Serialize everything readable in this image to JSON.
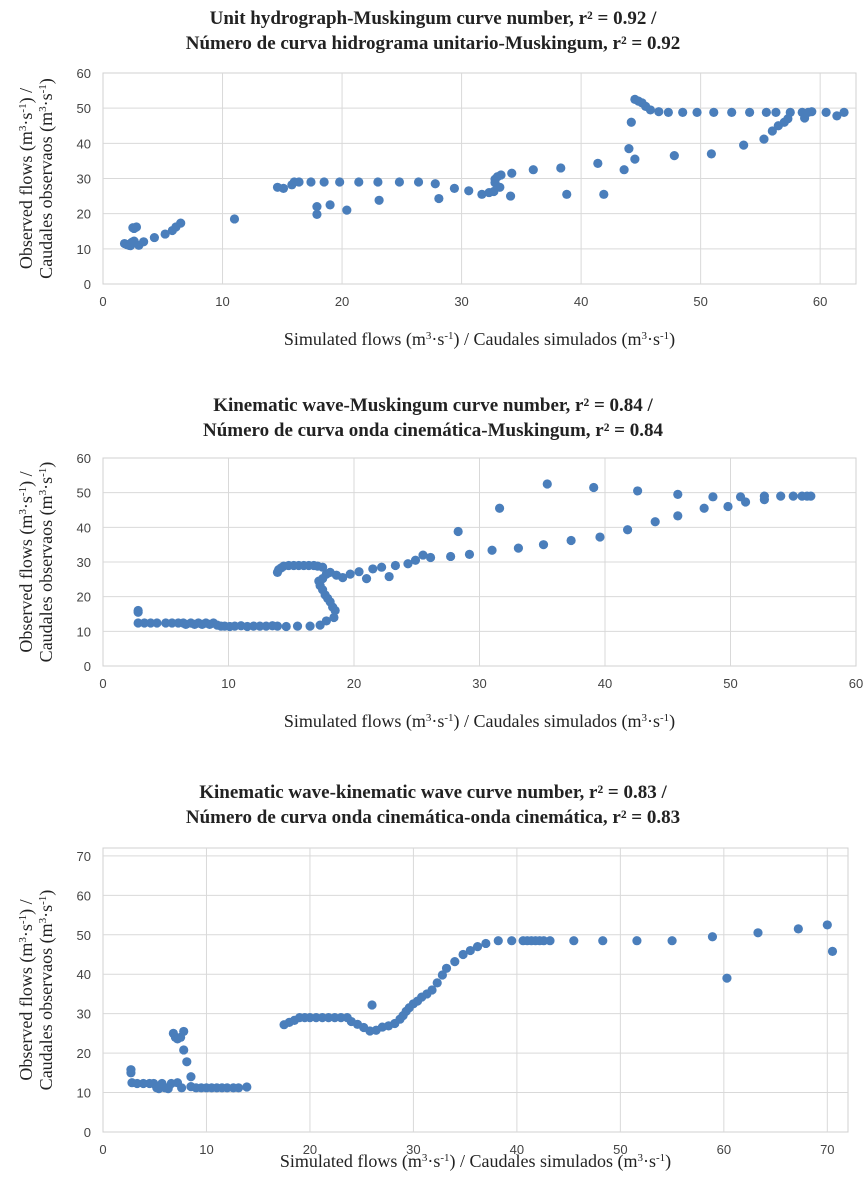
{
  "chart_data": [
    {
      "type": "scatter",
      "title": [
        "Unit hydrograph-Muskingum curve number, r² = 0.92 /",
        "Número de curva hidrograma unitario-Muskingum, r² = 0.92"
      ],
      "xlabel": "Simulated flows (m³·s⁻¹) / Caudales simulados (m³·s⁻¹)",
      "ylabel": [
        "Observed flows (m³·s⁻¹) /",
        "Caudales observaos (m³·s⁻¹)"
      ],
      "xlim": [
        0,
        63
      ],
      "ylim": [
        0,
        60
      ],
      "xticks": [
        0,
        10,
        20,
        30,
        40,
        50,
        60
      ],
      "yticks": [
        0,
        10,
        20,
        30,
        40,
        50,
        60
      ],
      "grid": true,
      "color": "#4a7ebb",
      "points": [
        [
          1.8,
          11.5
        ],
        [
          2.0,
          11.2
        ],
        [
          2.2,
          11.0
        ],
        [
          2.4,
          11.8
        ],
        [
          2.6,
          12.2
        ],
        [
          2.3,
          10.9
        ],
        [
          2.5,
          12.0
        ],
        [
          2.5,
          16.0
        ],
        [
          2.8,
          16.2
        ],
        [
          2.6,
          15.8
        ],
        [
          3.0,
          11.0
        ],
        [
          3.4,
          12.0
        ],
        [
          4.3,
          13.2
        ],
        [
          5.2,
          14.2
        ],
        [
          5.8,
          15.2
        ],
        [
          6.1,
          16.2
        ],
        [
          6.5,
          17.3
        ],
        [
          11.0,
          18.5
        ],
        [
          14.6,
          27.5
        ],
        [
          15.1,
          27.2
        ],
        [
          15.8,
          28.2
        ],
        [
          16.0,
          29.0
        ],
        [
          16.4,
          29.0
        ],
        [
          17.4,
          29.0
        ],
        [
          17.9,
          22.0
        ],
        [
          17.9,
          19.8
        ],
        [
          18.5,
          29.0
        ],
        [
          19.0,
          22.5
        ],
        [
          19.8,
          29.0
        ],
        [
          20.4,
          21.0
        ],
        [
          21.4,
          29.0
        ],
        [
          23.0,
          29.0
        ],
        [
          23.1,
          23.8
        ],
        [
          24.8,
          29.0
        ],
        [
          26.4,
          29.0
        ],
        [
          27.8,
          28.5
        ],
        [
          28.1,
          24.3
        ],
        [
          29.4,
          27.2
        ],
        [
          30.6,
          26.5
        ],
        [
          31.7,
          25.5
        ],
        [
          32.3,
          26.0
        ],
        [
          32.7,
          26.3
        ],
        [
          32.8,
          28.8
        ],
        [
          32.8,
          29.8
        ],
        [
          33.0,
          30.5
        ],
        [
          33.3,
          31.0
        ],
        [
          33.2,
          27.5
        ],
        [
          34.2,
          31.5
        ],
        [
          34.1,
          25.0
        ],
        [
          36.0,
          32.5
        ],
        [
          38.3,
          33.0
        ],
        [
          38.8,
          25.5
        ],
        [
          41.4,
          34.3
        ],
        [
          41.9,
          25.5
        ],
        [
          43.6,
          32.5
        ],
        [
          44.0,
          38.5
        ],
        [
          44.2,
          46.0
        ],
        [
          44.5,
          35.5
        ],
        [
          44.5,
          52.5
        ],
        [
          44.8,
          52.0
        ],
        [
          45.1,
          51.5
        ],
        [
          45.4,
          50.5
        ],
        [
          45.8,
          49.5
        ],
        [
          46.5,
          49.0
        ],
        [
          47.3,
          48.8
        ],
        [
          48.5,
          48.8
        ],
        [
          49.7,
          48.8
        ],
        [
          51.1,
          48.8
        ],
        [
          52.6,
          48.8
        ],
        [
          54.1,
          48.8
        ],
        [
          55.5,
          48.8
        ],
        [
          56.3,
          48.8
        ],
        [
          57.5,
          48.8
        ],
        [
          58.5,
          48.8
        ],
        [
          59.0,
          48.8
        ],
        [
          60.5,
          48.8
        ],
        [
          62.0,
          48.8
        ],
        [
          47.8,
          36.5
        ],
        [
          50.9,
          37.0
        ],
        [
          53.6,
          39.5
        ],
        [
          55.3,
          41.2
        ],
        [
          56.0,
          43.5
        ],
        [
          56.5,
          45.0
        ],
        [
          57.0,
          46.0
        ],
        [
          57.3,
          47.0
        ],
        [
          58.7,
          47.2
        ],
        [
          59.3,
          49.0
        ],
        [
          61.4,
          47.8
        ]
      ]
    },
    {
      "type": "scatter",
      "title": [
        "Kinematic wave-Muskingum curve number, r² = 0.84 /",
        "Número de curva onda cinemática-Muskingum, r² = 0.84"
      ],
      "xlabel": "Simulated flows (m³·s⁻¹) / Caudales simulados (m³·s⁻¹)",
      "ylabel": [
        "Observed flows (m³·s⁻¹) /",
        "Caudales observaos (m³·s⁻¹)"
      ],
      "xlim": [
        0,
        60
      ],
      "ylim": [
        0,
        60
      ],
      "xticks": [
        0,
        10,
        20,
        30,
        40,
        50,
        60
      ],
      "yticks": [
        0,
        10,
        20,
        30,
        40,
        50,
        60
      ],
      "grid": true,
      "color": "#4a7ebb",
      "points": [
        [
          2.8,
          16.0
        ],
        [
          2.8,
          15.5
        ],
        [
          2.8,
          12.4
        ],
        [
          3.3,
          12.4
        ],
        [
          3.8,
          12.4
        ],
        [
          4.3,
          12.4
        ],
        [
          5.0,
          12.4
        ],
        [
          5.5,
          12.4
        ],
        [
          6.0,
          12.4
        ],
        [
          6.4,
          12.4
        ],
        [
          6.6,
          12.0
        ],
        [
          7.0,
          12.4
        ],
        [
          7.3,
          12.0
        ],
        [
          7.6,
          12.4
        ],
        [
          7.9,
          12.0
        ],
        [
          8.2,
          12.4
        ],
        [
          8.5,
          12.0
        ],
        [
          8.8,
          12.4
        ],
        [
          9.1,
          11.8
        ],
        [
          9.4,
          11.5
        ],
        [
          9.7,
          11.5
        ],
        [
          10.1,
          11.4
        ],
        [
          10.5,
          11.5
        ],
        [
          11.0,
          11.6
        ],
        [
          11.5,
          11.4
        ],
        [
          12.0,
          11.5
        ],
        [
          12.5,
          11.5
        ],
        [
          13.0,
          11.5
        ],
        [
          13.5,
          11.6
        ],
        [
          13.9,
          11.5
        ],
        [
          14.6,
          11.4
        ],
        [
          15.5,
          11.5
        ],
        [
          16.5,
          11.5
        ],
        [
          17.3,
          11.8
        ],
        [
          17.8,
          13.0
        ],
        [
          18.4,
          14.0
        ],
        [
          18.5,
          16.0
        ],
        [
          18.3,
          17.0
        ],
        [
          18.1,
          18.5
        ],
        [
          17.9,
          19.5
        ],
        [
          17.7,
          20.5
        ],
        [
          17.5,
          22.0
        ],
        [
          17.3,
          23.2
        ],
        [
          17.2,
          24.5
        ],
        [
          17.5,
          25.2
        ],
        [
          17.8,
          26.5
        ],
        [
          13.9,
          27.0
        ],
        [
          14.0,
          27.8
        ],
        [
          14.2,
          28.3
        ],
        [
          14.4,
          28.8
        ],
        [
          14.8,
          29.0
        ],
        [
          15.2,
          29.0
        ],
        [
          15.6,
          29.0
        ],
        [
          16.0,
          29.0
        ],
        [
          16.4,
          29.0
        ],
        [
          16.8,
          29.0
        ],
        [
          17.1,
          28.8
        ],
        [
          17.5,
          28.5
        ],
        [
          18.1,
          27.0
        ],
        [
          18.6,
          26.2
        ],
        [
          19.1,
          25.5
        ],
        [
          19.7,
          26.5
        ],
        [
          20.4,
          27.2
        ],
        [
          21.0,
          25.2
        ],
        [
          21.5,
          28.0
        ],
        [
          22.2,
          28.5
        ],
        [
          22.8,
          25.8
        ],
        [
          23.3,
          29.0
        ],
        [
          24.3,
          29.5
        ],
        [
          24.9,
          30.5
        ],
        [
          25.5,
          32.0
        ],
        [
          26.1,
          31.3
        ],
        [
          27.7,
          31.6
        ],
        [
          28.3,
          38.8
        ],
        [
          29.2,
          32.2
        ],
        [
          31.0,
          33.4
        ],
        [
          31.6,
          45.5
        ],
        [
          33.1,
          34.0
        ],
        [
          35.1,
          35.0
        ],
        [
          35.4,
          52.5
        ],
        [
          37.3,
          36.2
        ],
        [
          39.1,
          51.5
        ],
        [
          39.6,
          37.2
        ],
        [
          41.8,
          39.3
        ],
        [
          42.6,
          50.5
        ],
        [
          44.0,
          41.6
        ],
        [
          45.8,
          43.3
        ],
        [
          45.8,
          49.5
        ],
        [
          47.9,
          45.5
        ],
        [
          48.6,
          48.8
        ],
        [
          49.8,
          46.0
        ],
        [
          50.8,
          48.8
        ],
        [
          51.2,
          47.3
        ],
        [
          52.7,
          48.0
        ],
        [
          52.7,
          49.0
        ],
        [
          54.0,
          49.0
        ],
        [
          55.0,
          49.0
        ],
        [
          55.7,
          49.0
        ],
        [
          56.1,
          49.0
        ],
        [
          56.4,
          49.0
        ]
      ]
    },
    {
      "type": "scatter",
      "title": [
        "Kinematic wave-kinematic wave curve number, r² = 0.83 /",
        "Número de curva onda cinemática-onda cinemática, r² = 0.83"
      ],
      "xlabel": "Simulated flows (m³·s⁻¹) / Caudales simulados (m³·s⁻¹)",
      "ylabel": [
        "Observed flows (m³·s⁻¹) /",
        "Caudales observaos (m³·s⁻¹)"
      ],
      "xlim": [
        0,
        72
      ],
      "ylim": [
        0,
        72
      ],
      "xticks": [
        0,
        10,
        20,
        30,
        40,
        50,
        60,
        70
      ],
      "yticks": [
        0,
        10,
        20,
        30,
        40,
        50,
        60,
        70
      ],
      "grid": true,
      "color": "#4a7ebb",
      "points": [
        [
          2.7,
          15.8
        ],
        [
          2.7,
          15.0
        ],
        [
          2.8,
          12.5
        ],
        [
          3.3,
          12.3
        ],
        [
          3.9,
          12.3
        ],
        [
          4.5,
          12.3
        ],
        [
          4.9,
          12.3
        ],
        [
          5.2,
          11.2
        ],
        [
          5.4,
          11.0
        ],
        [
          5.7,
          12.3
        ],
        [
          6.0,
          11.2
        ],
        [
          6.3,
          11.0
        ],
        [
          6.6,
          12.3
        ],
        [
          6.8,
          25.0
        ],
        [
          7.0,
          24.0
        ],
        [
          7.2,
          23.6
        ],
        [
          7.5,
          24.0
        ],
        [
          7.2,
          12.5
        ],
        [
          7.6,
          11.2
        ],
        [
          7.8,
          25.5
        ],
        [
          7.8,
          20.8
        ],
        [
          8.1,
          17.8
        ],
        [
          8.5,
          14.0
        ],
        [
          8.5,
          11.5
        ],
        [
          9.0,
          11.2
        ],
        [
          9.5,
          11.2
        ],
        [
          10.0,
          11.2
        ],
        [
          10.5,
          11.2
        ],
        [
          11.0,
          11.2
        ],
        [
          11.5,
          11.2
        ],
        [
          12.0,
          11.2
        ],
        [
          12.6,
          11.2
        ],
        [
          13.1,
          11.2
        ],
        [
          13.9,
          11.4
        ],
        [
          17.5,
          27.2
        ],
        [
          18.0,
          27.8
        ],
        [
          18.5,
          28.3
        ],
        [
          19.0,
          29.0
        ],
        [
          19.5,
          29.0
        ],
        [
          20.0,
          29.0
        ],
        [
          20.6,
          29.0
        ],
        [
          21.2,
          29.0
        ],
        [
          21.8,
          29.0
        ],
        [
          22.4,
          29.0
        ],
        [
          23.0,
          29.0
        ],
        [
          23.6,
          29.0
        ],
        [
          24.0,
          28.0
        ],
        [
          24.6,
          27.3
        ],
        [
          25.2,
          26.5
        ],
        [
          25.8,
          25.6
        ],
        [
          26.4,
          25.8
        ],
        [
          26.0,
          32.2
        ],
        [
          27.0,
          26.6
        ],
        [
          27.6,
          26.9
        ],
        [
          28.2,
          27.5
        ],
        [
          28.7,
          28.6
        ],
        [
          29.0,
          29.5
        ],
        [
          29.3,
          30.6
        ],
        [
          29.6,
          31.5
        ],
        [
          30.0,
          32.5
        ],
        [
          30.4,
          33.2
        ],
        [
          30.8,
          34.2
        ],
        [
          31.3,
          35.0
        ],
        [
          31.8,
          36.0
        ],
        [
          32.3,
          37.8
        ],
        [
          32.8,
          39.8
        ],
        [
          33.2,
          41.5
        ],
        [
          34.0,
          43.2
        ],
        [
          34.8,
          45.0
        ],
        [
          35.5,
          46.0
        ],
        [
          36.2,
          47.0
        ],
        [
          37.0,
          47.8
        ],
        [
          38.2,
          48.5
        ],
        [
          39.5,
          48.5
        ],
        [
          40.6,
          48.5
        ],
        [
          41.0,
          48.5
        ],
        [
          41.4,
          48.5
        ],
        [
          41.8,
          48.5
        ],
        [
          42.2,
          48.5
        ],
        [
          42.6,
          48.5
        ],
        [
          43.2,
          48.5
        ],
        [
          45.5,
          48.5
        ],
        [
          48.3,
          48.5
        ],
        [
          51.6,
          48.5
        ],
        [
          55.0,
          48.5
        ],
        [
          58.9,
          49.5
        ],
        [
          60.3,
          39.0
        ],
        [
          63.3,
          50.5
        ],
        [
          67.2,
          51.5
        ],
        [
          70.0,
          52.5
        ],
        [
          70.5,
          45.8
        ]
      ]
    }
  ]
}
